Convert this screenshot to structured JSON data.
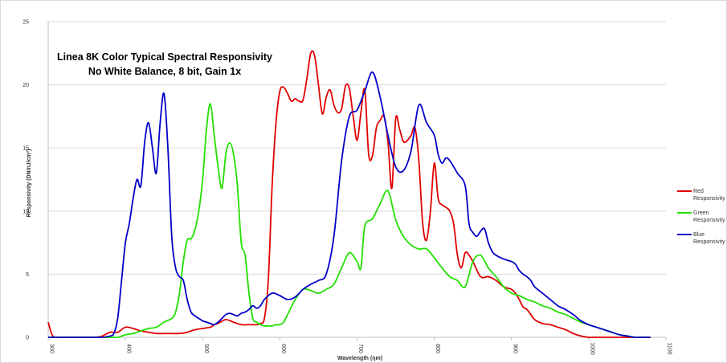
{
  "chart_data": {
    "type": "line",
    "title_lines": [
      "Linea 8K Color Typical Spectral Responsivity",
      "No White Balance, 8 bit, Gain 1x"
    ],
    "xlabel": "Wavelength (ηm)",
    "ylabel": "Responsivity (DN/nJ/cm²)",
    "xlim": [
      300,
      1100
    ],
    "ylim": [
      0,
      25
    ],
    "x_ticks": [
      "300",
      "400",
      "500",
      "600",
      "700",
      "800",
      "900",
      "1000",
      "1100"
    ],
    "y_ticks": [
      "0",
      "5",
      "10",
      "15",
      "20",
      "25"
    ],
    "grid": "horizontal",
    "legend_position": "right",
    "series": [
      {
        "name": "Red Responsivity",
        "legend_lines": [
          "Red",
          "Responsivity"
        ],
        "color": "#e00000",
        "x": [
          300,
          305,
          310,
          320,
          330,
          340,
          350,
          360,
          370,
          380,
          390,
          400,
          410,
          420,
          430,
          440,
          450,
          460,
          470,
          480,
          490,
          500,
          510,
          515,
          520,
          530,
          540,
          550,
          560,
          570,
          575,
          580,
          585,
          590,
          595,
          600,
          605,
          610,
          615,
          620,
          625,
          630,
          635,
          640,
          645,
          650,
          655,
          660,
          665,
          670,
          675,
          680,
          685,
          690,
          695,
          700,
          705,
          710,
          715,
          720,
          725,
          730,
          735,
          740,
          745,
          750,
          755,
          760,
          765,
          770,
          775,
          780,
          785,
          790,
          795,
          800,
          805,
          810,
          815,
          820,
          825,
          830,
          835,
          840,
          845,
          850,
          860,
          870,
          880,
          890,
          900,
          905,
          910,
          915,
          920,
          925,
          930,
          940,
          950,
          960,
          970,
          980,
          990,
          1000,
          1010,
          1020,
          1030,
          1040,
          1050,
          1060,
          1070,
          1080
        ],
        "y": [
          1.2,
          0.2,
          0,
          0,
          0,
          0,
          0,
          0,
          0.1,
          0.4,
          0.4,
          0.8,
          0.7,
          0.5,
          0.4,
          0.3,
          0.3,
          0.3,
          0.3,
          0.4,
          0.6,
          0.7,
          0.8,
          1.0,
          1.1,
          1.4,
          1.2,
          1.0,
          1.0,
          1.0,
          1.1,
          1.5,
          4.5,
          12,
          17,
          19.5,
          19.8,
          19.3,
          18.7,
          18.9,
          18.7,
          18.8,
          20.5,
          22.5,
          22.3,
          20,
          17.7,
          19,
          19.6,
          18.4,
          17.8,
          18.1,
          19.9,
          19.7,
          17.5,
          15.6,
          17.8,
          19.6,
          14.5,
          14.4,
          16.6,
          17.2,
          17.5,
          15.5,
          11.8,
          17.3,
          16.5,
          15.5,
          15.6,
          16,
          16.6,
          14,
          9,
          7.7,
          10,
          13.8,
          11,
          10.5,
          10.3,
          10,
          9,
          6.5,
          5.5,
          6.7,
          6.5,
          6,
          4.8,
          4.8,
          4.5,
          4.0,
          3.8,
          3.5,
          3.0,
          2.4,
          2.2,
          1.8,
          1.4,
          1.1,
          1.0,
          0.8,
          0.6,
          0.3,
          0.1,
          0,
          0,
          0,
          0,
          0,
          0,
          0,
          0,
          0
        ]
      },
      {
        "name": "Green Responsivity",
        "legend_lines": [
          "Green",
          "Responsivity"
        ],
        "color": "#22e000",
        "x": [
          300,
          310,
          320,
          330,
          340,
          350,
          360,
          370,
          380,
          390,
          400,
          410,
          420,
          430,
          440,
          450,
          460,
          465,
          470,
          475,
          480,
          485,
          490,
          495,
          500,
          505,
          510,
          515,
          520,
          525,
          530,
          535,
          540,
          545,
          550,
          555,
          560,
          565,
          570,
          575,
          580,
          585,
          590,
          595,
          600,
          605,
          610,
          620,
          630,
          640,
          650,
          660,
          670,
          680,
          690,
          700,
          705,
          710,
          720,
          730,
          740,
          750,
          760,
          770,
          780,
          790,
          800,
          810,
          820,
          830,
          840,
          850,
          860,
          870,
          880,
          890,
          900,
          910,
          920,
          930,
          940,
          950,
          960,
          970,
          980,
          990,
          1000,
          1010,
          1020,
          1030,
          1040,
          1050,
          1060,
          1070,
          1080
        ],
        "y": [
          0,
          0,
          0,
          0,
          0,
          0,
          0,
          0,
          0,
          0,
          0.2,
          0.3,
          0.5,
          0.7,
          0.8,
          1.2,
          1.5,
          2.0,
          3.5,
          6.0,
          7.7,
          7.8,
          8.5,
          10,
          12.5,
          16.5,
          18.5,
          16,
          13.5,
          11.8,
          14.5,
          15.4,
          14.5,
          12.0,
          7.5,
          6.5,
          3.5,
          1.5,
          1.2,
          1.0,
          0.9,
          0.9,
          0.9,
          1.0,
          1.0,
          1.2,
          1.8,
          3.0,
          3.8,
          3.7,
          3.5,
          3.8,
          4.2,
          5.5,
          6.7,
          6.0,
          5.5,
          8.8,
          9.4,
          10.6,
          11.6,
          9.3,
          8,
          7.3,
          7.0,
          7.0,
          6.3,
          5.5,
          4.8,
          4.5,
          4.0,
          6.0,
          6.5,
          5.5,
          4.8,
          4.0,
          3.5,
          3.3,
          3.0,
          2.8,
          2.5,
          2.3,
          2.0,
          1.8,
          1.5,
          1.2,
          1.0,
          0.8,
          0.6,
          0.4,
          0.2,
          0.1,
          0,
          0,
          0
        ],
        "x_ref_note": ""
      },
      {
        "name": "Blue Responsivity",
        "legend_lines": [
          "Blue",
          "Responsivity"
        ],
        "color": "#0000c8",
        "x": [
          300,
          310,
          320,
          330,
          340,
          350,
          360,
          370,
          380,
          385,
          390,
          395,
          400,
          405,
          410,
          415,
          420,
          425,
          430,
          435,
          440,
          445,
          450,
          455,
          460,
          465,
          470,
          475,
          480,
          485,
          490,
          495,
          500,
          505,
          510,
          515,
          520,
          525,
          530,
          535,
          540,
          545,
          550,
          555,
          560,
          565,
          570,
          575,
          580,
          590,
          600,
          610,
          620,
          630,
          640,
          650,
          660,
          670,
          680,
          690,
          700,
          710,
          720,
          730,
          740,
          750,
          760,
          770,
          780,
          790,
          800,
          805,
          810,
          815,
          820,
          830,
          840,
          845,
          850,
          855,
          860,
          865,
          870,
          875,
          880,
          890,
          900,
          905,
          910,
          915,
          920,
          925,
          930,
          940,
          950,
          960,
          970,
          980,
          990,
          1000,
          1010,
          1020,
          1030,
          1040,
          1050,
          1060,
          1070,
          1080
        ],
        "y": [
          0,
          0,
          0,
          0,
          0,
          0,
          0,
          0,
          0.1,
          0.3,
          1.5,
          4.5,
          7.5,
          9.0,
          11,
          12.5,
          12.0,
          15.5,
          17,
          15,
          13,
          17,
          19.3,
          15,
          8.0,
          5.5,
          4.8,
          4.5,
          3.0,
          2.0,
          1.7,
          1.5,
          1.3,
          1.2,
          1.1,
          1.0,
          1.2,
          1.5,
          1.8,
          1.9,
          1.8,
          1.7,
          1.9,
          2.0,
          2.2,
          2.5,
          2.3,
          2.5,
          3.0,
          3.5,
          3.3,
          3.0,
          3.2,
          3.8,
          4.2,
          4.5,
          5.0,
          8.0,
          14.0,
          17.5,
          18.0,
          19.5,
          21.0,
          19.0,
          16.0,
          13.5,
          13.2,
          14.8,
          18.4,
          17.0,
          16.0,
          14.5,
          13.8,
          14.2,
          14.0,
          13.0,
          12.0,
          9.0,
          8.3,
          8.0,
          8.4,
          8.6,
          7.5,
          6.8,
          6.5,
          6.2,
          6.0,
          5.8,
          5.3,
          5.0,
          4.8,
          4.5,
          4.0,
          3.5,
          3.0,
          2.5,
          2.2,
          1.8,
          1.3,
          1.0,
          0.8,
          0.6,
          0.4,
          0.2,
          0.1,
          0,
          0,
          0
        ],
        "x_ref_note": ""
      }
    ]
  }
}
